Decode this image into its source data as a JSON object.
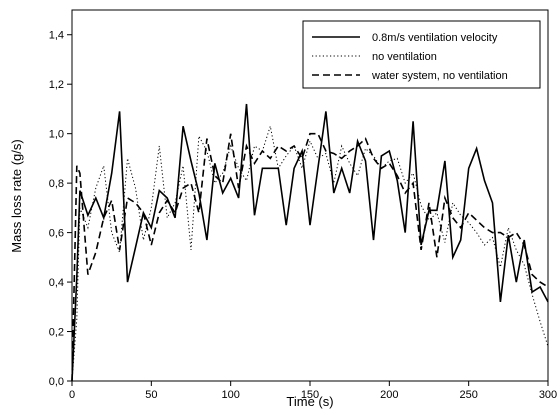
{
  "chart_data": {
    "type": "line",
    "xlabel": "Time (s)",
    "ylabel": "Mass loss rate (g/s)",
    "xlim": [
      0,
      300
    ],
    "ylim": [
      0,
      1.5
    ],
    "xticks": [
      "0",
      "50",
      "100",
      "150",
      "200",
      "250",
      "300"
    ],
    "xtick_values": [
      0,
      50,
      100,
      150,
      200,
      250,
      300
    ],
    "yticks": [
      "0,0",
      "0,2",
      "0,4",
      "0,6",
      "0,8",
      "1,0",
      "1,2",
      "1,4"
    ],
    "ytick_values": [
      0,
      0.2,
      0.4,
      0.6,
      0.8,
      1.0,
      1.2,
      1.4
    ],
    "grid": false,
    "legend_position": "top-right",
    "series": [
      {
        "name": "0.8m/s ventilation velocity",
        "style": "solid",
        "color": "#000000",
        "points": [
          [
            0,
            0
          ],
          [
            3,
            0.42
          ],
          [
            5,
            0.77
          ],
          [
            10,
            0.67
          ],
          [
            15,
            0.74
          ],
          [
            20,
            0.66
          ],
          [
            25,
            0.84
          ],
          [
            30,
            1.09
          ],
          [
            35,
            0.4
          ],
          [
            40,
            0.54
          ],
          [
            45,
            0.68
          ],
          [
            50,
            0.62
          ],
          [
            55,
            0.77
          ],
          [
            60,
            0.74
          ],
          [
            65,
            0.66
          ],
          [
            70,
            1.03
          ],
          [
            75,
            0.89
          ],
          [
            80,
            0.76
          ],
          [
            85,
            0.57
          ],
          [
            90,
            0.88
          ],
          [
            95,
            0.76
          ],
          [
            100,
            0.82
          ],
          [
            105,
            0.74
          ],
          [
            110,
            1.12
          ],
          [
            115,
            0.67
          ],
          [
            120,
            0.86
          ],
          [
            125,
            0.86
          ],
          [
            130,
            0.86
          ],
          [
            135,
            0.63
          ],
          [
            140,
            0.86
          ],
          [
            145,
            0.93
          ],
          [
            150,
            0.63
          ],
          [
            155,
            0.86
          ],
          [
            160,
            1.09
          ],
          [
            165,
            0.76
          ],
          [
            170,
            0.86
          ],
          [
            175,
            0.76
          ],
          [
            180,
            0.97
          ],
          [
            185,
            0.89
          ],
          [
            190,
            0.57
          ],
          [
            195,
            0.91
          ],
          [
            200,
            0.93
          ],
          [
            205,
            0.81
          ],
          [
            210,
            0.6
          ],
          [
            215,
            1.05
          ],
          [
            220,
            0.55
          ],
          [
            225,
            0.69
          ],
          [
            230,
            0.69
          ],
          [
            235,
            0.89
          ],
          [
            240,
            0.5
          ],
          [
            245,
            0.57
          ],
          [
            250,
            0.86
          ],
          [
            255,
            0.94
          ],
          [
            260,
            0.81
          ],
          [
            265,
            0.72
          ],
          [
            270,
            0.32
          ],
          [
            275,
            0.59
          ],
          [
            280,
            0.4
          ],
          [
            285,
            0.57
          ],
          [
            290,
            0.36
          ],
          [
            295,
            0.38
          ],
          [
            300,
            0.32
          ]
        ]
      },
      {
        "name": "no ventilation",
        "style": "dotted",
        "color": "#000000",
        "points": [
          [
            0,
            0
          ],
          [
            3,
            0.25
          ],
          [
            5,
            0.7
          ],
          [
            10,
            0.62
          ],
          [
            15,
            0.78
          ],
          [
            20,
            0.87
          ],
          [
            25,
            0.6
          ],
          [
            30,
            0.52
          ],
          [
            35,
            0.9
          ],
          [
            40,
            0.78
          ],
          [
            45,
            0.57
          ],
          [
            50,
            0.7
          ],
          [
            55,
            0.95
          ],
          [
            60,
            0.66
          ],
          [
            65,
            0.72
          ],
          [
            70,
            0.87
          ],
          [
            75,
            0.53
          ],
          [
            80,
            0.99
          ],
          [
            85,
            0.93
          ],
          [
            90,
            0.8
          ],
          [
            95,
            0.84
          ],
          [
            100,
            0.95
          ],
          [
            105,
            0.86
          ],
          [
            110,
            0.81
          ],
          [
            115,
            0.95
          ],
          [
            120,
            0.93
          ],
          [
            125,
            1.03
          ],
          [
            130,
            0.86
          ],
          [
            135,
            0.91
          ],
          [
            140,
            0.95
          ],
          [
            145,
            0.86
          ],
          [
            150,
            0.97
          ],
          [
            155,
            0.9
          ],
          [
            160,
            0.92
          ],
          [
            165,
            0.8
          ],
          [
            170,
            0.95
          ],
          [
            175,
            0.88
          ],
          [
            180,
            0.83
          ],
          [
            185,
            0.94
          ],
          [
            190,
            0.91
          ],
          [
            195,
            0.86
          ],
          [
            200,
            0.89
          ],
          [
            205,
            0.9
          ],
          [
            210,
            0.8
          ],
          [
            215,
            0.84
          ],
          [
            220,
            0.71
          ],
          [
            225,
            0.65
          ],
          [
            230,
            0.68
          ],
          [
            235,
            0.56
          ],
          [
            240,
            0.72
          ],
          [
            245,
            0.67
          ],
          [
            250,
            0.64
          ],
          [
            255,
            0.6
          ],
          [
            260,
            0.55
          ],
          [
            265,
            0.58
          ],
          [
            270,
            0.46
          ],
          [
            275,
            0.62
          ],
          [
            280,
            0.53
          ],
          [
            285,
            0.47
          ],
          [
            290,
            0.35
          ],
          [
            295,
            0.24
          ],
          [
            300,
            0.14
          ]
        ]
      },
      {
        "name": "water system, no ventilation",
        "style": "dashed",
        "color": "#000000",
        "points": [
          [
            0,
            0
          ],
          [
            3,
            0.87
          ],
          [
            5,
            0.84
          ],
          [
            10,
            0.43
          ],
          [
            15,
            0.52
          ],
          [
            20,
            0.66
          ],
          [
            25,
            0.73
          ],
          [
            30,
            0.53
          ],
          [
            35,
            0.74
          ],
          [
            40,
            0.72
          ],
          [
            45,
            0.68
          ],
          [
            50,
            0.55
          ],
          [
            55,
            0.68
          ],
          [
            60,
            0.73
          ],
          [
            65,
            0.68
          ],
          [
            70,
            0.78
          ],
          [
            75,
            0.8
          ],
          [
            80,
            0.68
          ],
          [
            85,
            0.98
          ],
          [
            90,
            0.83
          ],
          [
            95,
            0.8
          ],
          [
            100,
            1.0
          ],
          [
            105,
            0.78
          ],
          [
            110,
            0.95
          ],
          [
            115,
            0.88
          ],
          [
            120,
            0.93
          ],
          [
            125,
            0.9
          ],
          [
            130,
            0.95
          ],
          [
            135,
            0.93
          ],
          [
            140,
            0.95
          ],
          [
            145,
            0.9
          ],
          [
            150,
            1.0
          ],
          [
            155,
            1.0
          ],
          [
            160,
            0.93
          ],
          [
            165,
            0.92
          ],
          [
            170,
            0.9
          ],
          [
            175,
            0.93
          ],
          [
            180,
            0.95
          ],
          [
            185,
            0.98
          ],
          [
            190,
            0.9
          ],
          [
            195,
            0.86
          ],
          [
            200,
            0.88
          ],
          [
            205,
            0.83
          ],
          [
            210,
            0.76
          ],
          [
            215,
            0.8
          ],
          [
            220,
            0.53
          ],
          [
            225,
            0.72
          ],
          [
            230,
            0.5
          ],
          [
            235,
            0.74
          ],
          [
            240,
            0.66
          ],
          [
            245,
            0.62
          ],
          [
            250,
            0.68
          ],
          [
            255,
            0.65
          ],
          [
            260,
            0.62
          ],
          [
            265,
            0.6
          ],
          [
            270,
            0.6
          ],
          [
            275,
            0.58
          ],
          [
            280,
            0.6
          ],
          [
            285,
            0.55
          ],
          [
            290,
            0.43
          ],
          [
            295,
            0.4
          ],
          [
            300,
            0.38
          ]
        ]
      }
    ]
  }
}
